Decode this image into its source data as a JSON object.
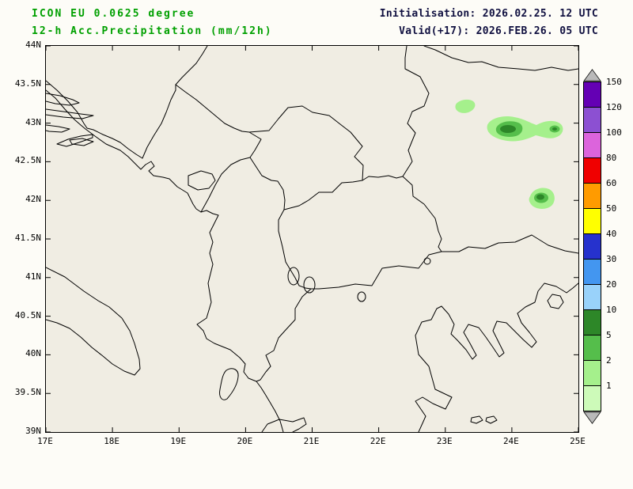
{
  "header": {
    "model_line": "ICON EU 0.0625 degree",
    "product_line": "12-h Acc.Precipitation (mm/12h)",
    "init_line": "Initialisation: 2026.02.25. 12 UTC",
    "valid_line": "Valid(+17): 2026.FEB.26. 05 UTC",
    "title_color": "#00a000",
    "info_color": "#101040"
  },
  "map": {
    "bg_color": "#f0ede3",
    "frame_color": "#000000",
    "lat_labels": [
      "44N",
      "43.5N",
      "43N",
      "42.5N",
      "42N",
      "41.5N",
      "41N",
      "40.5N",
      "40N",
      "39.5N",
      "39N"
    ],
    "lon_labels": [
      "17E",
      "18E",
      "19E",
      "20E",
      "21E",
      "22E",
      "23E",
      "24E",
      "25E"
    ]
  },
  "colorbar": {
    "unit": "mm/12h",
    "arrow_color": "#b9b9b9",
    "cells": [
      {
        "label": "150",
        "color": "#6400b4"
      },
      {
        "label": "120",
        "color": "#8c50d2"
      },
      {
        "label": "100",
        "color": "#dc64dc"
      },
      {
        "label": "80",
        "color": "#f00000"
      },
      {
        "label": "60",
        "color": "#ff9b00"
      },
      {
        "label": "50",
        "color": "#ffff00"
      },
      {
        "label": "40",
        "color": "#2632cd"
      },
      {
        "label": "30",
        "color": "#4396f0"
      },
      {
        "label": "20",
        "color": "#99d2fa"
      },
      {
        "label": "10",
        "color": "#2d8728"
      },
      {
        "label": "5",
        "color": "#55be4b"
      },
      {
        "label": "2",
        "color": "#a5f08c"
      },
      {
        "label": "1",
        "color": "#cdfab9"
      }
    ]
  },
  "precip_colors": {
    "light": "#a5f08c",
    "mid": "#55be4b",
    "dark": "#2d8728"
  },
  "precip_areas": [
    {
      "name": "small-area-northwest",
      "approx_lon": "23.3E",
      "approx_lat": "43.2N",
      "max_bin_mm": "1-2"
    },
    {
      "name": "main-area",
      "approx_lon": "24.1E",
      "approx_lat": "42.9N",
      "max_bin_mm": "5-10"
    },
    {
      "name": "east-area",
      "approx_lon": "24.6E",
      "approx_lat": "42.9N",
      "max_bin_mm": "2-5"
    },
    {
      "name": "south-area",
      "approx_lon": "24.4E",
      "approx_lat": "42.0N",
      "max_bin_mm": "5-10"
    }
  ]
}
